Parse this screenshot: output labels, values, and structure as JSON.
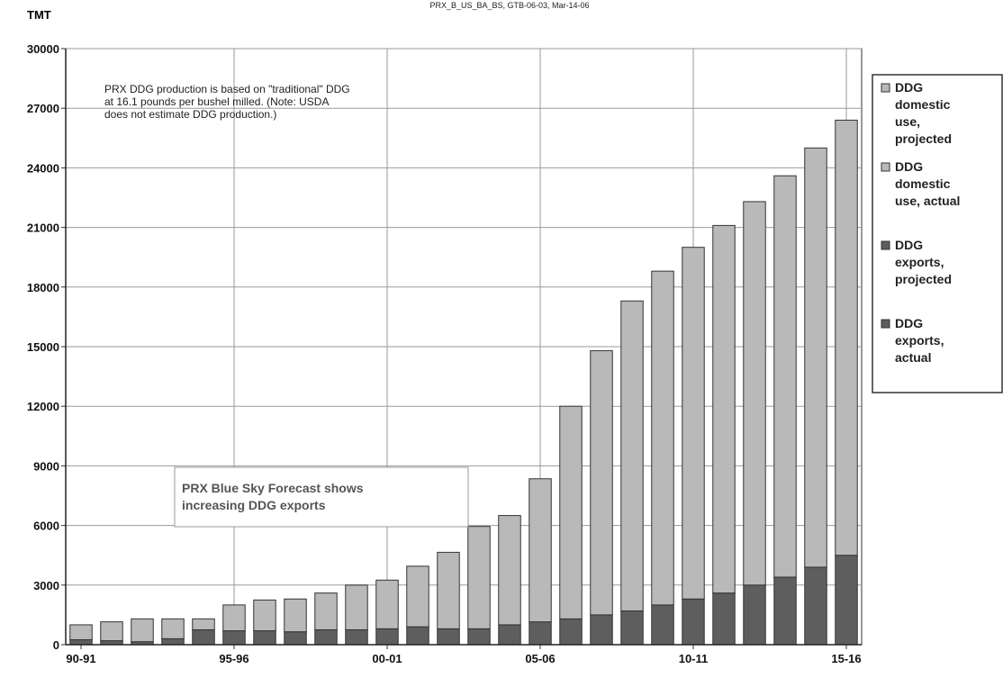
{
  "header": {
    "unit_label": "TMT",
    "source_tag": "PRX_B_US_BA_BS, GTB-06-03, Mar-14-06"
  },
  "notes": {
    "production_note": [
      "PRX DDG production is based on \"traditional\" DDG",
      "at 16.1 pounds per bushel milled.  (Note: USDA",
      "does not estimate DDG production.)"
    ],
    "callout": [
      "PRX Blue Sky Forecast shows",
      "increasing DDG exports"
    ]
  },
  "legend": {
    "entries": [
      {
        "label": [
          "DDG",
          "domestic",
          "use,",
          "projected"
        ],
        "series": "domestic"
      },
      {
        "label": [
          "DDG",
          "domestic",
          "use, actual"
        ],
        "series": "domestic"
      },
      {
        "label": [
          "DDG",
          "exports,",
          "projected"
        ],
        "series": "exports"
      },
      {
        "label": [
          "DDG",
          "exports,",
          "actual"
        ],
        "series": "exports"
      }
    ]
  },
  "colors": {
    "domestic_fill": "#b9b9b9",
    "exports_fill": "#5e5e5e",
    "bar_outline": "#333333",
    "grid": "#9a9a9a"
  },
  "chart_data": {
    "type": "bar",
    "stacked": true,
    "ylabel": "TMT",
    "ylim": [
      0,
      30000
    ],
    "yticks": [
      0,
      3000,
      6000,
      9000,
      12000,
      15000,
      18000,
      21000,
      24000,
      27000,
      30000
    ],
    "xtick_labels": [
      "90-91",
      "95-96",
      "00-01",
      "05-06",
      "10-11",
      "15-16"
    ],
    "categories": [
      "90-91",
      "91-92",
      "92-93",
      "93-94",
      "94-95",
      "95-96",
      "96-97",
      "97-98",
      "98-99",
      "99-00",
      "00-01",
      "01-02",
      "02-03",
      "03-04",
      "04-05",
      "05-06",
      "06-07",
      "07-08",
      "08-09",
      "09-10",
      "10-11",
      "11-12",
      "12-13",
      "13-14",
      "14-15",
      "15-16"
    ],
    "series": [
      {
        "name": "DDG exports",
        "values": [
          250,
          200,
          150,
          300,
          750,
          700,
          700,
          650,
          750,
          750,
          800,
          900,
          800,
          800,
          1000,
          1150,
          1300,
          1500,
          1700,
          2000,
          2300,
          2600,
          3000,
          3400,
          3900,
          4500
        ]
      },
      {
        "name": "DDG domestic use",
        "values": [
          750,
          950,
          1150,
          1000,
          550,
          1300,
          1550,
          1650,
          1850,
          2250,
          2450,
          3050,
          3850,
          5150,
          5500,
          7200,
          10700,
          13300,
          15600,
          16800,
          17700,
          18500,
          19300,
          20200,
          21100,
          21900
        ]
      }
    ]
  }
}
